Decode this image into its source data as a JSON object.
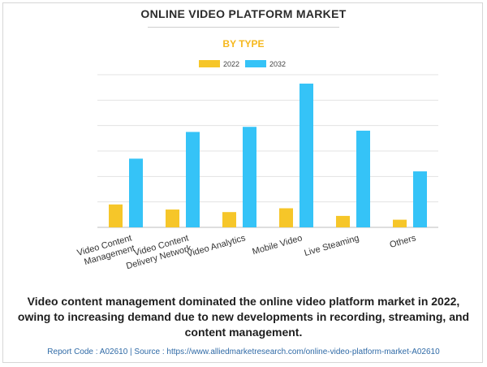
{
  "header": {
    "title": "ONLINE VIDEO PLATFORM MARKET",
    "subtitle": "BY TYPE"
  },
  "chart_data": {
    "type": "bar",
    "categories": [
      "Video Content Management",
      "Video Content Delivery Network",
      "Video Analytics",
      "Mobile Video",
      "Live Steaming",
      "Others"
    ],
    "category_label_lines": [
      [
        "Video Content",
        "Management"
      ],
      [
        "Video Content",
        "Delivery Network"
      ],
      [
        "Video Analytics"
      ],
      [
        "Mobile Video"
      ],
      [
        "Live Steaming"
      ],
      [
        "Others"
      ]
    ],
    "series": [
      {
        "name": "2022",
        "color": "#f6c629",
        "values": [
          0.9,
          0.7,
          0.6,
          0.75,
          0.45,
          0.3
        ]
      },
      {
        "name": "2032",
        "color": "#35c3f7",
        "values": [
          2.7,
          3.75,
          3.95,
          5.65,
          3.8,
          2.2
        ]
      }
    ],
    "ylim": [
      0,
      6
    ],
    "y_gridlines": [
      1,
      2,
      3,
      4,
      5,
      6
    ],
    "legend_position": "top-center",
    "grid": true
  },
  "footer": {
    "caption": "Video content management dominated the online video platform market in 2022, owing to increasing demand due to new developments in recording, streaming, and content management.",
    "source": "Report Code : A02610  |  Source : https://www.alliedmarketresearch.com/online-video-platform-market-A02610"
  }
}
